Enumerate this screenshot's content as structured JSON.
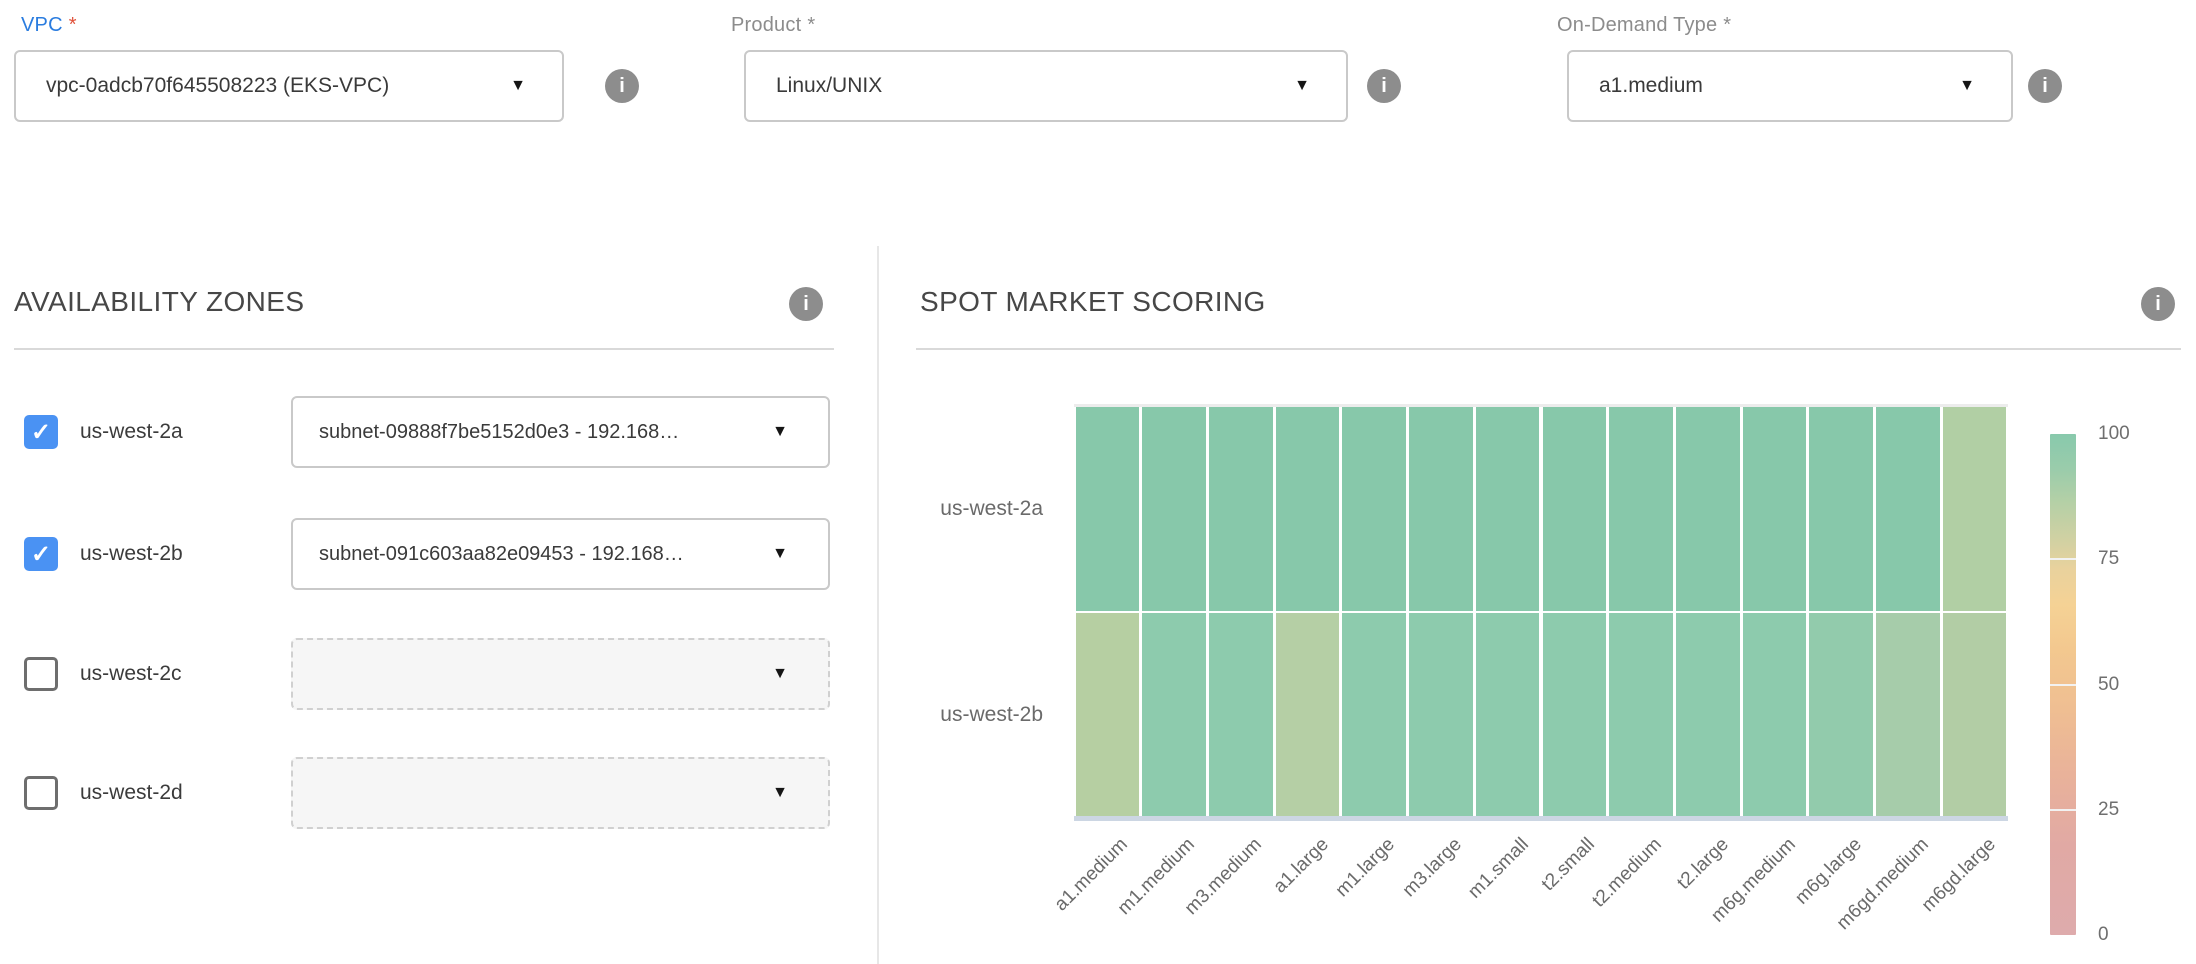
{
  "icons": {
    "caret_down": "▼",
    "checkmark": "✓",
    "info": "i"
  },
  "top_fields": [
    {
      "id": "vpc",
      "label": "VPC",
      "required_mark": "*",
      "value": "vpc-0adcb70f645508223 (EKS-VPC)",
      "label_color": "#2a7cdf",
      "required_color": "#e0513a"
    },
    {
      "id": "product",
      "label": "Product",
      "required_mark": "*",
      "value": "Linux/UNIX",
      "label_color": "#8c8c8c",
      "required_color": "#8c8c8c"
    },
    {
      "id": "on-demand-type",
      "label": "On-Demand Type",
      "required_mark": "*",
      "value": "a1.medium",
      "label_color": "#8c8c8c",
      "required_color": "#8c8c8c"
    }
  ],
  "sections": {
    "availability_zones": {
      "title": "AVAILABILITY ZONES"
    },
    "spot_market_scoring": {
      "title": "SPOT MARKET SCORING"
    }
  },
  "availability_zones_rows": [
    {
      "zone": "us-west-2a",
      "checked": true,
      "disabled": false,
      "subnet": "subnet-09888f7be5152d0e3 - 192.168…"
    },
    {
      "zone": "us-west-2b",
      "checked": true,
      "disabled": false,
      "subnet": "subnet-091c603aa82e09453 - 192.168…"
    },
    {
      "zone": "us-west-2c",
      "checked": false,
      "disabled": true,
      "subnet": ""
    },
    {
      "zone": "us-west-2d",
      "checked": false,
      "disabled": true,
      "subnet": ""
    }
  ],
  "chart_data": {
    "type": "heatmap",
    "title": "SPOT MARKET SCORING",
    "x_categories": [
      "a1.medium",
      "m1.medium",
      "m3.medium",
      "a1.large",
      "m1.large",
      "m3.large",
      "m1.small",
      "t2.small",
      "t2.medium",
      "t2.large",
      "m6g.medium",
      "m6g.large",
      "m6gd.medium",
      "m6gd.large"
    ],
    "y_categories": [
      "us-west-2a",
      "us-west-2b"
    ],
    "series": [
      {
        "name": "us-west-2a",
        "values": [
          95,
          95,
          95,
          95,
          95,
          95,
          95,
          95,
          95,
          95,
          95,
          95,
          95,
          82
        ],
        "colors": [
          "#87c8aa",
          "#87c8aa",
          "#87c8aa",
          "#87c8aa",
          "#87c8aa",
          "#87c8aa",
          "#87c8aa",
          "#87c8aa",
          "#87c8aa",
          "#87c8aa",
          "#87c8aa",
          "#87c8aa",
          "#87c8aa",
          "#b1cfa4"
        ]
      },
      {
        "name": "us-west-2b",
        "values": [
          79,
          92,
          92,
          80,
          92,
          92,
          92,
          92,
          92,
          92,
          92,
          90,
          85,
          81
        ],
        "colors": [
          "#b6cfa2",
          "#8dcbad",
          "#8dcbad",
          "#b5cfa5",
          "#8dcbad",
          "#8dcbad",
          "#8dcbad",
          "#8dcbad",
          "#8dcbad",
          "#8dcbad",
          "#8dcbad",
          "#92cbac",
          "#a6ccaa",
          "#b2cda5"
        ]
      }
    ],
    "colorbar": {
      "min": 0,
      "max": 100,
      "tick_labels": [
        100,
        75,
        50,
        25,
        0
      ],
      "gradient_stops": [
        {
          "value": 0,
          "color": "#deabac"
        },
        {
          "value": 18,
          "color": "#e1a9a4"
        },
        {
          "value": 32,
          "color": "#e9b29a"
        },
        {
          "value": 45,
          "color": "#efbe92"
        },
        {
          "value": 57,
          "color": "#f3c88f"
        },
        {
          "value": 66,
          "color": "#f5d295"
        },
        {
          "value": 73,
          "color": "#e9d29d"
        },
        {
          "value": 78,
          "color": "#d4d1a2"
        },
        {
          "value": 86,
          "color": "#b6d0a6"
        },
        {
          "value": 93,
          "color": "#9accab"
        },
        {
          "value": 100,
          "color": "#88c9ac"
        }
      ]
    },
    "legend_position": "right",
    "grid": "white cell gaps"
  }
}
